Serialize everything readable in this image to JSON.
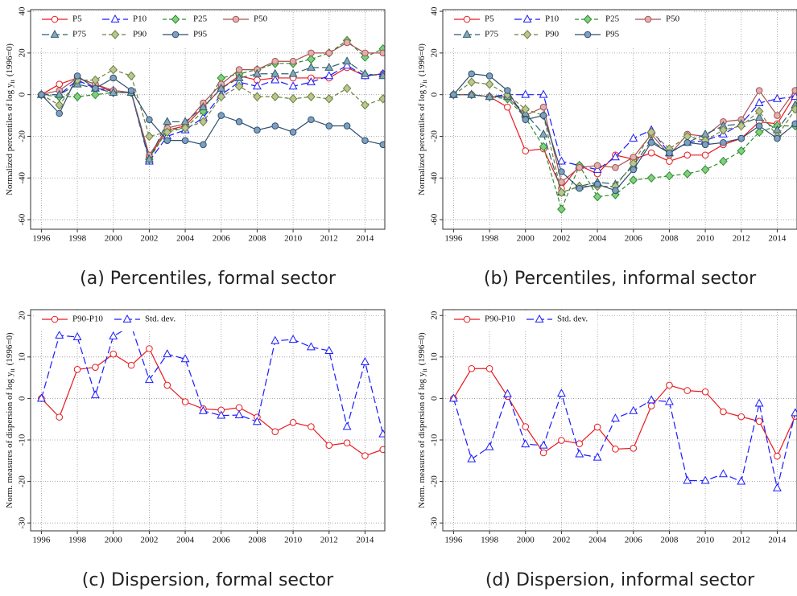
{
  "chart_data": [
    {
      "type": "line",
      "caption": "(a) Percentiles, formal sector",
      "ylabel": {
        "pre": "Normalized percentiles of log y",
        "sub": "it",
        "post": "(1996=0)"
      },
      "x": [
        1996,
        1997,
        1998,
        1999,
        2000,
        2001,
        2002,
        2003,
        2004,
        2005,
        2006,
        2007,
        2008,
        2009,
        2010,
        2011,
        2012,
        2013,
        2014,
        2015
      ],
      "xlim": [
        1995.4,
        2015.1
      ],
      "xticks": [
        1996,
        1998,
        2000,
        2002,
        2004,
        2006,
        2008,
        2010,
        2012,
        2014
      ],
      "ylim": [
        -64.6,
        40.8
      ],
      "yticks": [
        -60,
        -40,
        -20,
        0,
        20,
        40
      ],
      "grid": true,
      "legend": "upper left",
      "series": [
        {
          "name": "P5",
          "color": "#e8191e",
          "fill": "#ffffff",
          "marker": "circle",
          "dash": "solid",
          "values": [
            0,
            5,
            8,
            5,
            1,
            1,
            -30,
            -17,
            -15,
            -6,
            3,
            9,
            7,
            8,
            8,
            8,
            8,
            13,
            9,
            10
          ]
        },
        {
          "name": "P10",
          "color": "#1a1aff",
          "fill": "#ffffff",
          "marker": "triangle",
          "dash": "long",
          "values": [
            0,
            0,
            7,
            3,
            2,
            1,
            -32,
            -20,
            -17,
            -11,
            0,
            6,
            4,
            7,
            4,
            6,
            9,
            14,
            9,
            10
          ]
        },
        {
          "name": "P25",
          "color": "#2e8b2e",
          "fill": "#80d080",
          "marker": "diamond",
          "dash": "short",
          "values": [
            0,
            -1,
            -1,
            0,
            1,
            1,
            -31,
            -17,
            -16,
            -8,
            8,
            10,
            12,
            15,
            15,
            17,
            20,
            26,
            18,
            22
          ]
        },
        {
          "name": "P50",
          "color": "#a85050",
          "fill": "#e0b0b0",
          "marker": "circle",
          "dash": "solid",
          "values": [
            0,
            2,
            8,
            5,
            2,
            1,
            -29,
            -16,
            -14,
            -4,
            5,
            12,
            12,
            16,
            16,
            20,
            20,
            25,
            20,
            20
          ]
        },
        {
          "name": "P75",
          "color": "#2f5f6f",
          "fill": "#88a8b8",
          "marker": "triangle",
          "dash": "long",
          "values": [
            0,
            0,
            5,
            3,
            1,
            1,
            -31,
            -13,
            -13,
            -6,
            3,
            8,
            10,
            10,
            10,
            13,
            13,
            16,
            10,
            9
          ]
        },
        {
          "name": "P90",
          "color": "#6f7f3f",
          "fill": "#b8c890",
          "marker": "diamond",
          "dash": "short",
          "values": [
            0,
            -5,
            7,
            7,
            12,
            9,
            -20,
            -18,
            -16,
            -13,
            -1,
            4,
            -1,
            -1,
            -2,
            -1,
            -2,
            3,
            -5,
            -2
          ]
        },
        {
          "name": "P95",
          "color": "#2f4f6f",
          "fill": "#7f9fbf",
          "marker": "circle",
          "dash": "solid",
          "values": [
            0,
            -9,
            9,
            3,
            8,
            2,
            -12,
            -22,
            -22,
            -24,
            -10,
            -13,
            -17,
            -15,
            -18,
            -12,
            -15,
            -15,
            -22,
            -24
          ]
        }
      ]
    },
    {
      "type": "line",
      "caption": "(b) Percentiles, informal sector",
      "ylabel": {
        "pre": "Normalized percentiles of log y",
        "sub": "it",
        "post": "(1996=0)"
      },
      "x": [
        1996,
        1997,
        1998,
        1999,
        2000,
        2001,
        2002,
        2003,
        2004,
        2005,
        2006,
        2007,
        2008,
        2009,
        2010,
        2011,
        2012,
        2013,
        2014,
        2015
      ],
      "xlim": [
        1995.4,
        2015.1
      ],
      "xticks": [
        1996,
        1998,
        2000,
        2002,
        2004,
        2006,
        2008,
        2010,
        2012,
        2014
      ],
      "ylim": [
        -64.6,
        40.8
      ],
      "yticks": [
        -60,
        -40,
        -20,
        0,
        20,
        40
      ],
      "grid": true,
      "legend": "upper left",
      "series": [
        {
          "name": "P5",
          "color": "#e8191e",
          "fill": "#ffffff",
          "marker": "circle",
          "dash": "solid",
          "values": [
            0,
            0,
            -1,
            -6,
            -27,
            -26,
            -45,
            -34,
            -38,
            -29,
            -31,
            -28,
            -32,
            -29,
            -29,
            -24,
            -21,
            -13,
            -14,
            0
          ]
        },
        {
          "name": "P10",
          "color": "#1a1aff",
          "fill": "#ffffff",
          "marker": "triangle",
          "dash": "long",
          "values": [
            0,
            0,
            -1,
            0,
            0,
            0,
            -32,
            -34,
            -36,
            -30,
            -21,
            -17,
            -28,
            -23,
            -22,
            -19,
            -14,
            -4,
            -2,
            -1
          ]
        },
        {
          "name": "P25",
          "color": "#2e8b2e",
          "fill": "#80d080",
          "marker": "diamond",
          "dash": "short",
          "values": [
            0,
            0,
            -1,
            -2,
            -11,
            -25,
            -55,
            -34,
            -49,
            -48,
            -41,
            -40,
            -39,
            -38,
            -36,
            -32,
            -27,
            -18,
            -15,
            -15
          ]
        },
        {
          "name": "P50",
          "color": "#a85050",
          "fill": "#e0b0b0",
          "marker": "circle",
          "dash": "solid",
          "values": [
            0,
            0,
            -1,
            -1,
            -10,
            -6,
            -42,
            -35,
            -34,
            -35,
            -30,
            -19,
            -29,
            -19,
            -20,
            -13,
            -12,
            2,
            -10,
            2
          ]
        },
        {
          "name": "P75",
          "color": "#2f5f6f",
          "fill": "#88a8b8",
          "marker": "triangle",
          "dash": "long",
          "values": [
            0,
            0,
            -1,
            -1,
            -9,
            -19,
            -47,
            -44,
            -42,
            -43,
            -34,
            -22,
            -28,
            -23,
            -19,
            -15,
            -14,
            -11,
            -17,
            -5
          ]
        },
        {
          "name": "P90",
          "color": "#6f7f3f",
          "fill": "#b8c890",
          "marker": "diamond",
          "dash": "short",
          "values": [
            0,
            6,
            5,
            0,
            -7,
            -10,
            -47,
            -44,
            -44,
            -44,
            -33,
            -18,
            -26,
            -20,
            -22,
            -17,
            -15,
            -8,
            -20,
            -7
          ]
        },
        {
          "name": "P95",
          "color": "#2f4f6f",
          "fill": "#7f9fbf",
          "marker": "circle",
          "dash": "solid",
          "values": [
            0,
            10,
            9,
            2,
            -12,
            -10,
            -37,
            -45,
            -43,
            -46,
            -36,
            -23,
            -28,
            -23,
            -24,
            -23,
            -21,
            -15,
            -21,
            -14
          ]
        }
      ]
    },
    {
      "type": "line",
      "caption": "(c) Dispersion, formal sector",
      "ylabel": {
        "pre": "Norm. measures of dispersion of log y",
        "sub": "it",
        "post": "(1996=0)"
      },
      "x": [
        1996,
        1997,
        1998,
        1999,
        2000,
        2001,
        2002,
        2003,
        2004,
        2005,
        2006,
        2007,
        2008,
        2009,
        2010,
        2011,
        2012,
        2013,
        2014,
        2015
      ],
      "xlim": [
        1995.4,
        2015.1
      ],
      "xticks": [
        1996,
        1998,
        2000,
        2002,
        2004,
        2006,
        2008,
        2010,
        2012,
        2014
      ],
      "ylim": [
        -31.9,
        21.4
      ],
      "yticks": [
        -30,
        -20,
        -10,
        0,
        10,
        20
      ],
      "grid": true,
      "legend": "upper left",
      "series": [
        {
          "name": "P90-P10",
          "color": "#e8191e",
          "fill": "#ffffff",
          "marker": "circle",
          "dash": "solid",
          "values": [
            0,
            -4.5,
            7,
            7.5,
            10.7,
            8,
            12,
            3.2,
            -0.8,
            -2.5,
            -2.8,
            -2.2,
            -4.5,
            -8,
            -5.8,
            -6.8,
            -11.3,
            -10.7,
            -13.8,
            -12.3
          ]
        },
        {
          "name": "Std. dev.",
          "color": "#1a1aff",
          "fill": "#ffffff",
          "marker": "triangle",
          "dash": "long",
          "values": [
            0,
            15.2,
            14.8,
            0.8,
            15,
            17.5,
            4.5,
            10.7,
            9.5,
            -3,
            -4.1,
            -4,
            -5.6,
            13.9,
            14.2,
            12.4,
            11.5,
            -6.8,
            8.8,
            -8.6
          ]
        }
      ]
    },
    {
      "type": "line",
      "caption": "(d) Dispersion, informal sector",
      "ylabel": {
        "pre": "Norm. measures of dispersion of log y",
        "sub": "it",
        "post": "(1996=0)"
      },
      "x": [
        1996,
        1997,
        1998,
        1999,
        2000,
        2001,
        2002,
        2003,
        2004,
        2005,
        2006,
        2007,
        2008,
        2009,
        2010,
        2011,
        2012,
        2013,
        2014,
        2015
      ],
      "xlim": [
        1995.4,
        2015.1
      ],
      "xticks": [
        1996,
        1998,
        2000,
        2002,
        2004,
        2006,
        2008,
        2010,
        2012,
        2014
      ],
      "ylim": [
        -31.9,
        21.4
      ],
      "yticks": [
        -30,
        -20,
        -10,
        0,
        10,
        20
      ],
      "grid": true,
      "legend": "upper left",
      "series": [
        {
          "name": "P90-P10",
          "color": "#e8191e",
          "fill": "#ffffff",
          "marker": "circle",
          "dash": "solid",
          "values": [
            0,
            7.2,
            7.2,
            0.5,
            -6.8,
            -13.1,
            -10.1,
            -10.9,
            -6.9,
            -12.2,
            -12,
            -1.8,
            3.2,
            1.9,
            1.6,
            -3.2,
            -4.4,
            -5.5,
            -13.9,
            -4.3
          ]
        },
        {
          "name": "Std. dev.",
          "color": "#1a1aff",
          "fill": "#ffffff",
          "marker": "triangle",
          "dash": "long",
          "values": [
            0,
            -14.6,
            -11.7,
            1.1,
            -11,
            -11.3,
            1.2,
            -13.4,
            -14.2,
            -4.8,
            -3,
            -0.4,
            -0.8,
            -19.8,
            -19.8,
            -18.2,
            -20,
            -1.2,
            -21.6,
            -3.5
          ]
        }
      ]
    }
  ]
}
